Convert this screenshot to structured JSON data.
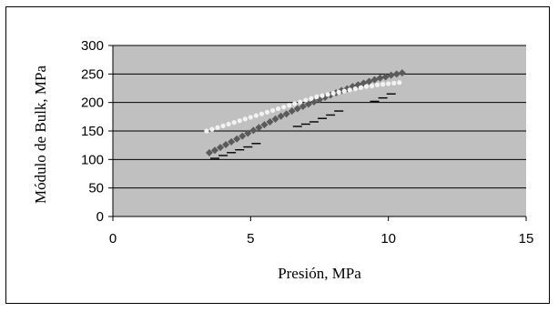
{
  "chart_data": {
    "type": "scatter",
    "title": "",
    "xlabel": "Presión, MPa",
    "ylabel": "Módulo de Bulk, MPa",
    "xlim": [
      0,
      15
    ],
    "ylim": [
      0,
      300
    ],
    "x_ticks": [
      0,
      5,
      10,
      15
    ],
    "y_ticks": [
      0,
      50,
      100,
      150,
      200,
      250,
      300
    ],
    "grid": "horizontal",
    "plot_background": "#c0c0c0",
    "series": [
      {
        "marker": "diamond",
        "color": "#5a5a5a",
        "x": [
          3.5,
          3.7,
          3.9,
          4.1,
          4.3,
          4.5,
          4.7,
          4.9,
          5.1,
          5.3,
          5.5,
          5.7,
          5.9,
          6.1,
          6.3,
          6.5,
          6.7,
          6.9,
          7.1,
          7.3,
          7.5,
          7.7,
          7.9,
          8.1,
          8.3,
          8.5,
          8.7,
          8.9,
          9.1,
          9.3,
          9.5,
          9.7,
          9.9,
          10.1,
          10.3,
          10.5
        ],
        "y": [
          112,
          116,
          121,
          126,
          131,
          136,
          141,
          146,
          151,
          156,
          161,
          166,
          171,
          176,
          180,
          185,
          189,
          193,
          197,
          201,
          205,
          209,
          213,
          217,
          221,
          224,
          228,
          231,
          234,
          237,
          240,
          243,
          245,
          248,
          250,
          252
        ]
      },
      {
        "marker": "circle",
        "color": "#f2f2f2",
        "x": [
          3.4,
          3.6,
          3.8,
          4.0,
          4.2,
          4.4,
          4.6,
          4.8,
          5.0,
          5.2,
          5.4,
          5.6,
          5.8,
          6.0,
          6.2,
          6.4,
          6.6,
          6.8,
          7.0,
          7.2,
          7.4,
          7.6,
          7.8,
          8.0,
          8.2,
          8.4,
          8.6,
          8.8,
          9.0,
          9.2,
          9.4,
          9.6,
          9.8,
          10.0,
          10.2,
          10.4
        ],
        "y": [
          150,
          153,
          156,
          159,
          162,
          165,
          168,
          171,
          174,
          177,
          180,
          183,
          186,
          189,
          192,
          195,
          198,
          201,
          204,
          207,
          210,
          212,
          214,
          216,
          218,
          220,
          222,
          224,
          226,
          228,
          229,
          231,
          232,
          233,
          234,
          235
        ]
      },
      {
        "marker": "dash",
        "color": "#000000",
        "x": [
          3.7,
          4.0,
          4.3,
          4.6,
          4.9,
          5.2,
          6.7,
          7.0,
          7.3,
          7.6,
          7.9,
          8.2,
          9.5,
          9.8,
          10.1
        ],
        "y": [
          102,
          107,
          112,
          117,
          122,
          128,
          158,
          162,
          166,
          172,
          178,
          185,
          202,
          208,
          215
        ]
      }
    ]
  }
}
